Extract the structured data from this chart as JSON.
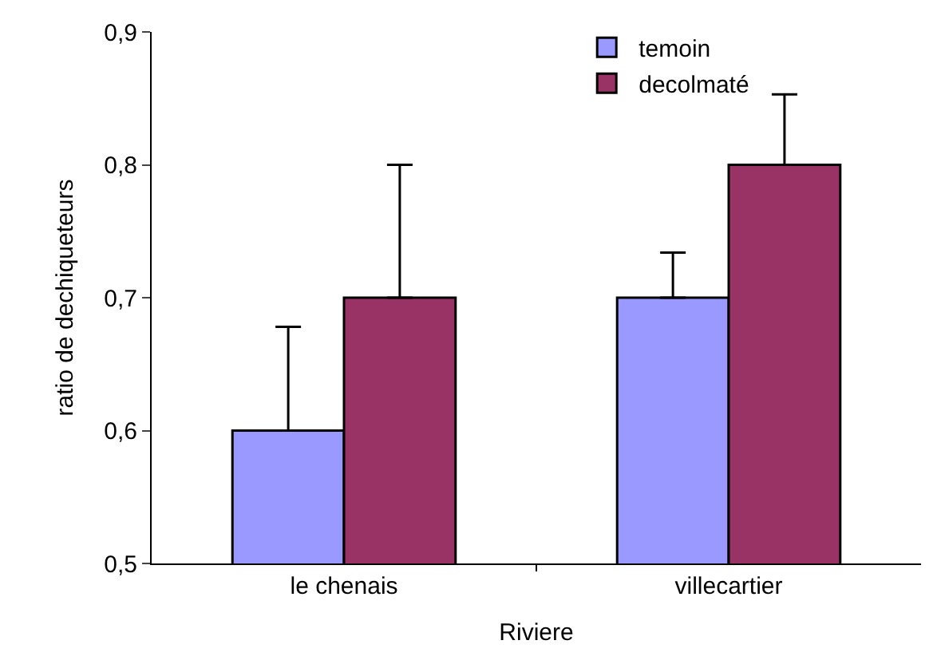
{
  "chart_data": {
    "type": "bar",
    "xlabel": "Riviere",
    "ylabel": "ratio de dechiqueteurs",
    "categories": [
      "le chenais",
      "villecartier"
    ],
    "series": [
      {
        "name": "temoin",
        "color": "#9999ff",
        "values": [
          0.6,
          0.7
        ],
        "errors": [
          [
            0.6,
            0.678
          ],
          [
            0.7,
            0.734
          ]
        ]
      },
      {
        "name": "decolmaté",
        "color": "#993366",
        "values": [
          0.7,
          0.8
        ],
        "errors": [
          [
            0.7,
            0.8
          ],
          [
            0.8,
            0.853
          ]
        ]
      }
    ],
    "ylim": [
      0.5,
      0.9
    ],
    "yticks": [
      {
        "value": 0.5,
        "label": "0,5"
      },
      {
        "value": 0.6,
        "label": "0,6"
      },
      {
        "value": 0.7,
        "label": "0,7"
      },
      {
        "value": 0.8,
        "label": "0,8"
      },
      {
        "value": 0.9,
        "label": "0,9"
      }
    ],
    "grid": false,
    "legend": "top"
  }
}
